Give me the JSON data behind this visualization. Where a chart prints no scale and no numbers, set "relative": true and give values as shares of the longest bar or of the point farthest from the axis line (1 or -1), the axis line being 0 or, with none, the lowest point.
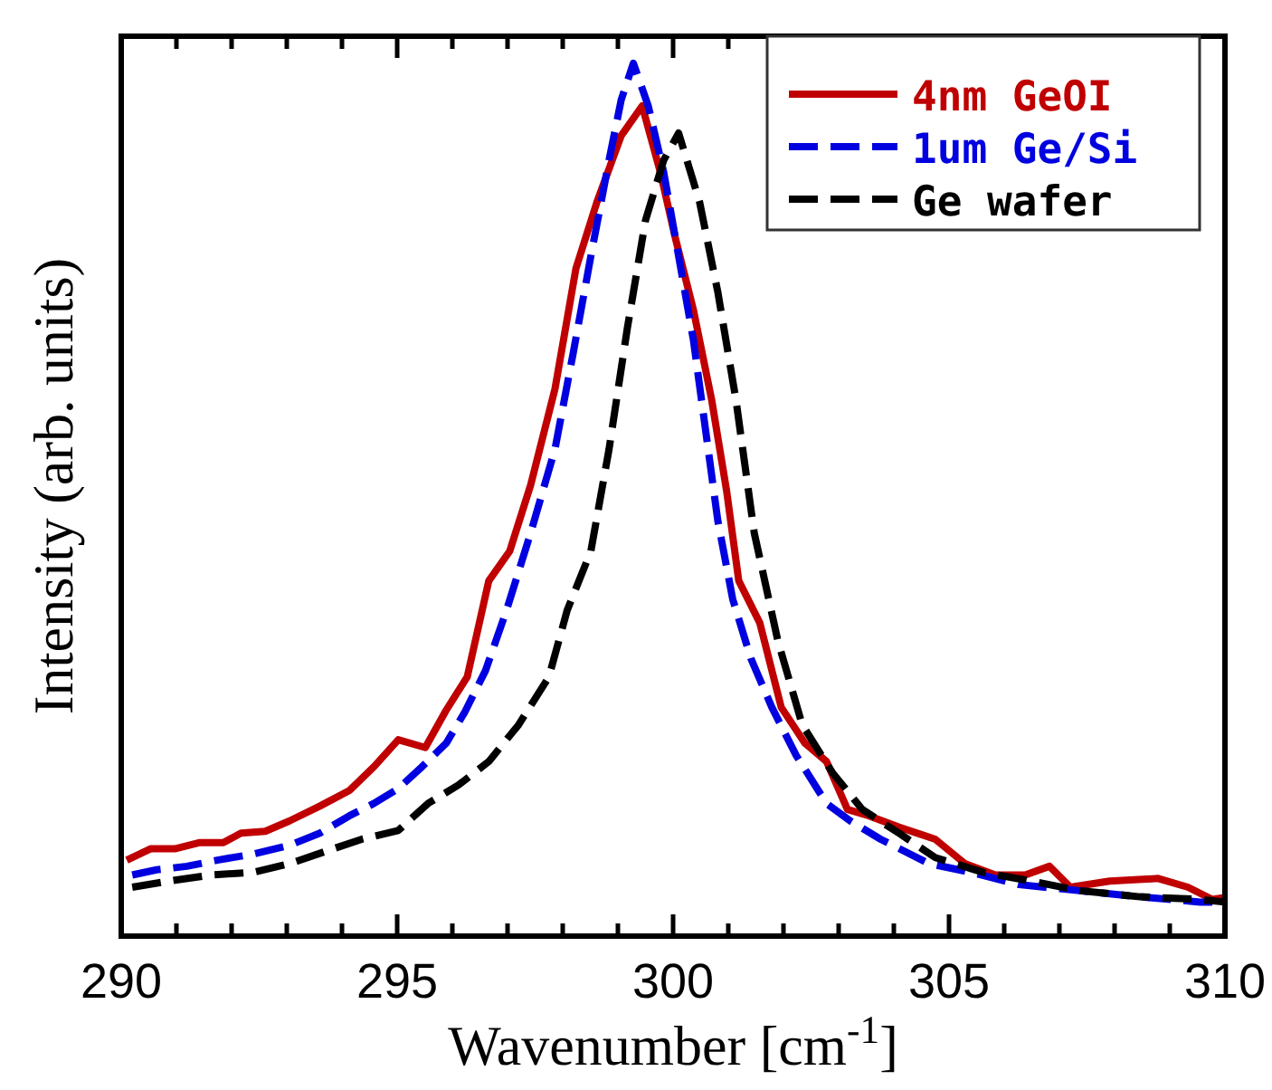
{
  "chart_data": {
    "type": "line",
    "relative": true,
    "xlabel": "Wavenumber [cm$^{-1}$]",
    "ylabel": "Intensity (arb. units)",
    "legend": "top right",
    "grid": false,
    "xlim": [
      290,
      310
    ],
    "xticks": [
      290,
      {
        "value": 291,
        "label": null
      },
      {
        "value": 292,
        "label": null
      },
      {
        "value": 293,
        "label": null
      },
      {
        "value": 294,
        "label": null
      },
      295,
      {
        "value": 296,
        "label": null
      },
      {
        "value": 297,
        "label": null
      },
      {
        "value": 298,
        "label": null
      },
      {
        "value": 299,
        "label": null
      },
      300,
      {
        "value": 301,
        "label": null
      },
      {
        "value": 302,
        "label": null
      },
      {
        "value": 303,
        "label": null
      },
      {
        "value": 304,
        "label": null
      },
      305,
      {
        "value": 306,
        "label": null
      },
      {
        "value": 307,
        "label": null
      },
      {
        "value": 308,
        "label": null
      },
      {
        "value": 309,
        "label": null
      },
      310
    ],
    "series": [
      {
        "name": "4nm GeOI",
        "color": "#c00000",
        "line_style": "solid",
        "x": [
          290.1,
          290.53,
          290.97,
          291.41,
          291.85,
          292.17,
          292.61,
          293.05,
          293.6,
          294.14,
          294.58,
          295.02,
          295.51,
          295.89,
          296.27,
          296.66,
          297.04,
          297.42,
          297.86,
          298.24,
          298.62,
          299.06,
          299.44,
          299.77,
          300.04,
          300.37,
          300.7,
          300.97,
          301.19,
          301.57,
          301.96,
          302.39,
          302.78,
          303.16,
          303.54,
          304.09,
          304.75,
          305.29,
          305.84,
          306.38,
          306.82,
          307.2,
          307.91,
          308.79,
          309.33,
          309.77,
          309.99
        ],
        "values": [
          0.087,
          0.1,
          0.1,
          0.107,
          0.107,
          0.118,
          0.12,
          0.132,
          0.149,
          0.167,
          0.194,
          0.225,
          0.216,
          0.259,
          0.297,
          0.407,
          0.441,
          0.517,
          0.627,
          0.765,
          0.841,
          0.917,
          0.951,
          0.875,
          0.8,
          0.717,
          0.614,
          0.51,
          0.407,
          0.359,
          0.262,
          0.221,
          0.2,
          0.145,
          0.138,
          0.125,
          0.111,
          0.083,
          0.07,
          0.07,
          0.08,
          0.056,
          0.063,
          0.066,
          0.056,
          0.042,
          0.044
        ]
      },
      {
        "name": "1um Ge/Si",
        "color": "#0000e0",
        "line_style": "dashed",
        "x": [
          290.2,
          290.64,
          291.19,
          291.74,
          292.39,
          293.05,
          293.6,
          294.14,
          294.58,
          295.02,
          295.45,
          295.89,
          296.22,
          296.6,
          296.98,
          297.42,
          297.86,
          298.19,
          298.51,
          298.84,
          299.06,
          299.28,
          299.55,
          299.83,
          300.1,
          300.37,
          300.59,
          300.81,
          301.08,
          301.41,
          301.79,
          302.23,
          302.78,
          303.21,
          303.76,
          304.64,
          305.4,
          306.27,
          307.37,
          308.46,
          309.55,
          309.99
        ],
        "values": [
          0.07,
          0.076,
          0.08,
          0.087,
          0.094,
          0.104,
          0.118,
          0.138,
          0.152,
          0.169,
          0.194,
          0.221,
          0.256,
          0.304,
          0.373,
          0.462,
          0.558,
          0.668,
          0.779,
          0.889,
          0.958,
          1,
          0.951,
          0.875,
          0.779,
          0.682,
          0.579,
          0.476,
          0.386,
          0.318,
          0.262,
          0.207,
          0.152,
          0.132,
          0.111,
          0.083,
          0.073,
          0.059,
          0.052,
          0.045,
          0.039,
          0.039
        ]
      },
      {
        "name": "Ge wafer",
        "color": "#000000",
        "line_style": "dashed",
        "x": [
          290.2,
          290.86,
          291.63,
          292.39,
          293.05,
          293.7,
          294.36,
          295.02,
          295.56,
          296.11,
          296.66,
          297.2,
          297.75,
          298.08,
          298.51,
          298.84,
          299.17,
          299.5,
          299.83,
          300.1,
          300.48,
          300.81,
          301.14,
          301.47,
          301.9,
          302.34,
          302.89,
          303.43,
          304.09,
          304.75,
          305.62,
          306.49,
          307.37,
          308.46,
          309.55,
          309.99
        ],
        "values": [
          0.056,
          0.063,
          0.07,
          0.073,
          0.083,
          0.097,
          0.111,
          0.121,
          0.152,
          0.173,
          0.2,
          0.242,
          0.297,
          0.373,
          0.441,
          0.558,
          0.696,
          0.82,
          0.889,
          0.92,
          0.841,
          0.738,
          0.614,
          0.462,
          0.338,
          0.242,
          0.187,
          0.145,
          0.118,
          0.09,
          0.073,
          0.063,
          0.052,
          0.045,
          0.042,
          0.039
        ]
      }
    ]
  }
}
